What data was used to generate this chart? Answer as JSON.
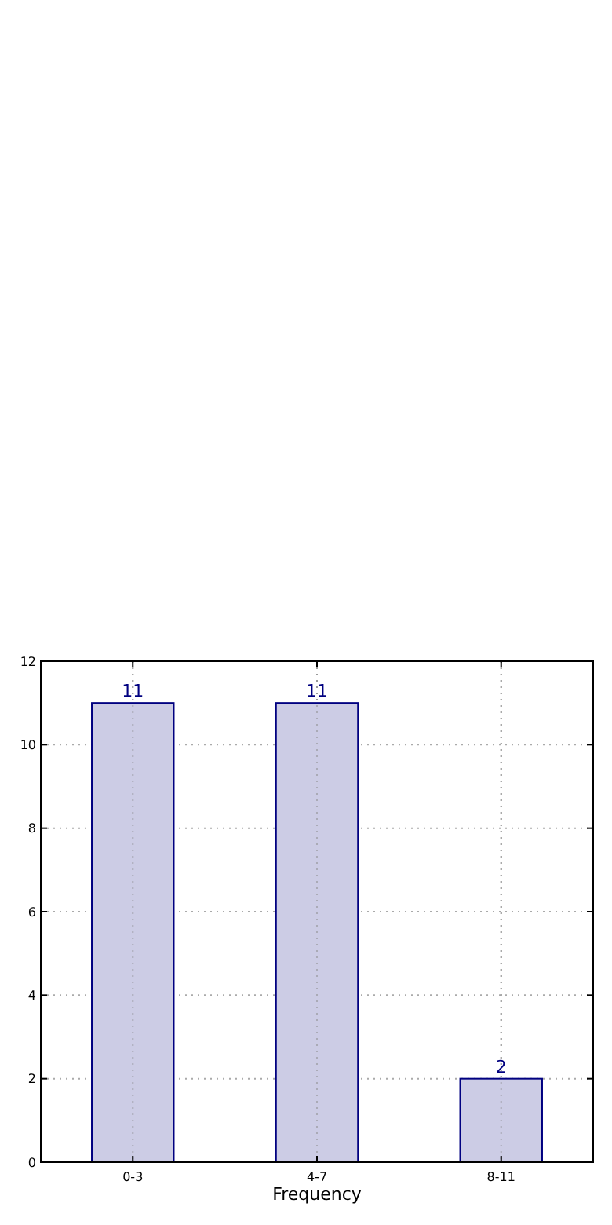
{
  "chart_data": {
    "type": "bar",
    "xlabel": "Frequency",
    "categories": [
      "0-3",
      "4-7",
      "8-11"
    ],
    "series": [
      {
        "color": "#ccccE5",
        "values": [
          11,
          11,
          2
        ]
      }
    ],
    "ylim": [
      0,
      12
    ],
    "yticks": [
      0,
      2,
      4,
      6,
      8,
      10,
      12
    ],
    "grid": true,
    "data_labels": true
  }
}
